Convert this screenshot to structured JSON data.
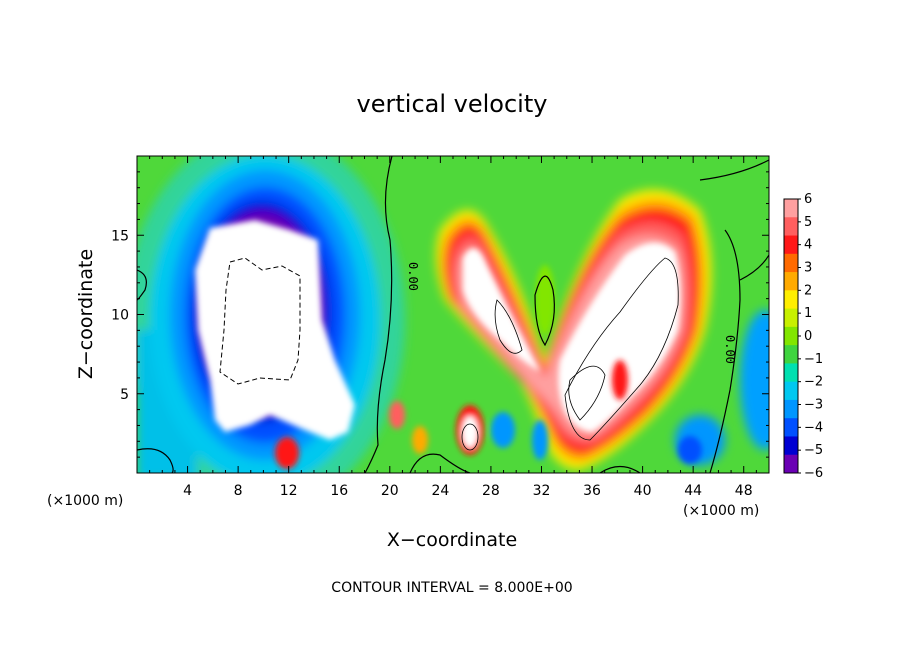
{
  "chart_data": {
    "type": "heatmap",
    "title": "vertical velocity",
    "xlabel": "X−coordinate",
    "ylabel": "Z−coordinate",
    "x_unit_left": "(×1000 m)",
    "x_unit_right": "(×1000 m)",
    "contour_note": "CONTOUR INTERVAL = 8.000E+00",
    "xlim": [
      0,
      50
    ],
    "ylim": [
      0,
      20
    ],
    "xticks": [
      4,
      8,
      12,
      16,
      20,
      24,
      28,
      32,
      36,
      40,
      44,
      48
    ],
    "yticks": [
      5,
      10,
      15
    ],
    "colorbar": {
      "min": -6,
      "max": 6,
      "ticks": [
        "6",
        "5",
        "4",
        "3",
        "2",
        "1",
        "0",
        "−1",
        "−2",
        "−3",
        "−4",
        "−5",
        "−6"
      ],
      "colors": [
        "#ffa0a0",
        "#ff5f5f",
        "#ff1818",
        "#ff6a00",
        "#ffaa00",
        "#ffee00",
        "#c8f000",
        "#82e600",
        "#3fd43f",
        "#00e0b0",
        "#00c8f0",
        "#0096ff",
        "#0050ff",
        "#0000d2",
        "#6a00b4",
        "#ffffff"
      ]
    },
    "contour_labels": [
      "0.00",
      "0.00"
    ],
    "features": [
      {
        "name": "downdraft",
        "sign": "negative",
        "center": [
          10,
          9.5
        ],
        "extent_x": [
          5,
          17
        ],
        "extent_z": [
          1,
          16
        ]
      },
      {
        "name": "updraft-left-arm",
        "sign": "positive",
        "center": [
          27,
          10
        ],
        "extent_x": [
          23,
          32
        ],
        "extent_z": [
          4,
          15
        ]
      },
      {
        "name": "updraft-right-arm",
        "sign": "positive",
        "center": [
          39,
          9
        ],
        "extent_x": [
          33,
          46
        ],
        "extent_z": [
          1,
          16
        ]
      },
      {
        "name": "updraft-cell-low",
        "sign": "positive",
        "center": [
          26.5,
          2.2
        ],
        "extent_x": [
          25,
          28
        ],
        "extent_z": [
          0.5,
          4
        ]
      },
      {
        "name": "positive-cell-surface",
        "sign": "positive",
        "center": [
          12,
          1.2
        ],
        "extent_x": [
          11,
          13
        ],
        "extent_z": [
          0,
          2.5
        ]
      },
      {
        "name": "positive-cell",
        "sign": "positive",
        "center": [
          20.5,
          3.6
        ],
        "extent_x": [
          19.5,
          21.5
        ],
        "extent_z": [
          2.5,
          5
        ]
      }
    ]
  }
}
